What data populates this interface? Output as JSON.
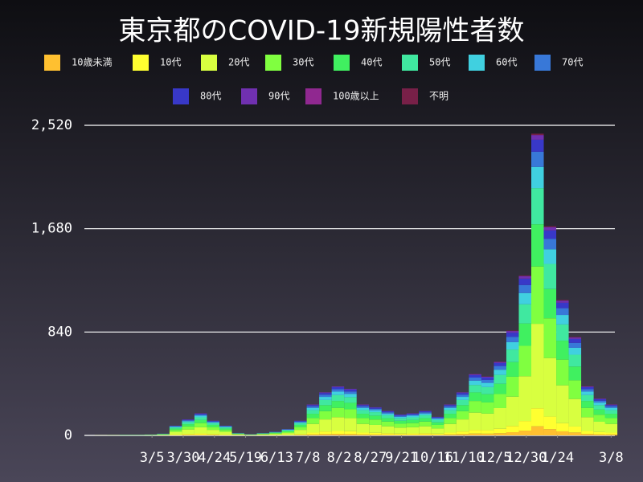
{
  "chart_data": {
    "type": "stacked-bar",
    "title": "東京都のCOVID-19新規陽性者数",
    "x": [
      0,
      10,
      20,
      30,
      40,
      50,
      60,
      70,
      80,
      90,
      100,
      110,
      120,
      130,
      140,
      150,
      160,
      170,
      180,
      190,
      200,
      210,
      220,
      230,
      240,
      250,
      260,
      270,
      280,
      290,
      300,
      310,
      320,
      330,
      340,
      350,
      360,
      370,
      380,
      390,
      400,
      409
    ],
    "xlim": [
      -10,
      412
    ],
    "xticks": [
      {
        "value": 41,
        "label": "3/5"
      },
      {
        "value": 66,
        "label": "3/30"
      },
      {
        "value": 91,
        "label": "4/24"
      },
      {
        "value": 116,
        "label": "5/19"
      },
      {
        "value": 141,
        "label": "6/13"
      },
      {
        "value": 166,
        "label": "7/8"
      },
      {
        "value": 191,
        "label": "8/2"
      },
      {
        "value": 216,
        "label": "8/27"
      },
      {
        "value": 241,
        "label": "9/21"
      },
      {
        "value": 266,
        "label": "10/16"
      },
      {
        "value": 291,
        "label": "11/10"
      },
      {
        "value": 316,
        "label": "12/5"
      },
      {
        "value": 341,
        "label": "12/30"
      },
      {
        "value": 366,
        "label": "1/24"
      },
      {
        "value": 409,
        "label": "3/8"
      }
    ],
    "ylim": [
      0,
      2520
    ],
    "yticks": [
      0,
      {
        "value": 840,
        "label": "840"
      },
      {
        "value": 1680,
        "label": "1,680"
      },
      {
        "value": 2520,
        "label": "2,520"
      }
    ],
    "grid": true,
    "series": [
      {
        "name": "10歳未満",
        "color": "#ffc030",
        "values": [
          0,
          0,
          0,
          0,
          0,
          0,
          2,
          4,
          5,
          4,
          2,
          1,
          0,
          1,
          1,
          2,
          4,
          8,
          11,
          12,
          11,
          8,
          7,
          6,
          5,
          5,
          6,
          5,
          8,
          11,
          15,
          14,
          18,
          26,
          39,
          74,
          51,
          33,
          24,
          12,
          9,
          8
        ]
      },
      {
        "name": "10代",
        "color": "#ffff30",
        "values": [
          0,
          0,
          0,
          0,
          0,
          1,
          5,
          8,
          11,
          7,
          5,
          1,
          1,
          1,
          2,
          3,
          7,
          15,
          21,
          24,
          23,
          15,
          14,
          12,
          10,
          11,
          12,
          9,
          15,
          21,
          30,
          29,
          36,
          51,
          78,
          147,
          102,
          66,
          48,
          24,
          18,
          15
        ]
      },
      {
        "name": "20代",
        "color": "#d8ff40",
        "values": [
          1,
          1,
          1,
          1,
          2,
          4,
          22,
          36,
          50,
          34,
          22,
          6,
          3,
          6,
          8,
          14,
          34,
          70,
          98,
          112,
          106,
          70,
          64,
          56,
          48,
          50,
          56,
          42,
          70,
          98,
          140,
          134,
          168,
          238,
          364,
          686,
          476,
          308,
          224,
          112,
          84,
          70
        ]
      },
      {
        "name": "30代",
        "color": "#80ff40",
        "values": [
          0,
          1,
          1,
          1,
          2,
          3,
          15,
          25,
          34,
          23,
          15,
          4,
          2,
          4,
          6,
          10,
          23,
          48,
          67,
          76,
          72,
          48,
          44,
          38,
          32,
          34,
          38,
          29,
          48,
          67,
          95,
          91,
          114,
          162,
          247,
          466,
          323,
          209,
          152,
          76,
          57,
          48
        ]
      },
      {
        "name": "40代",
        "color": "#40f060",
        "values": [
          0,
          0,
          1,
          1,
          1,
          2,
          11,
          18,
          25,
          17,
          11,
          3,
          1,
          3,
          4,
          7,
          17,
          35,
          49,
          56,
          53,
          35,
          32,
          28,
          24,
          25,
          28,
          21,
          35,
          49,
          70,
          67,
          84,
          119,
          182,
          343,
          238,
          154,
          112,
          56,
          42,
          35
        ]
      },
      {
        "name": "50代",
        "color": "#40e8a0",
        "values": [
          0,
          0,
          1,
          1,
          1,
          2,
          10,
          16,
          22,
          14,
          10,
          2,
          1,
          2,
          4,
          6,
          14,
          30,
          42,
          48,
          46,
          30,
          28,
          24,
          20,
          22,
          24,
          18,
          30,
          42,
          60,
          58,
          72,
          102,
          156,
          294,
          204,
          132,
          96,
          48,
          36,
          30
        ]
      },
      {
        "name": "60代",
        "color": "#40d0e0",
        "values": [
          0,
          0,
          0,
          0,
          1,
          1,
          6,
          9,
          13,
          8,
          6,
          1,
          1,
          1,
          2,
          4,
          8,
          18,
          25,
          28,
          27,
          18,
          16,
          14,
          12,
          13,
          14,
          11,
          18,
          25,
          35,
          34,
          42,
          60,
          91,
          172,
          119,
          77,
          56,
          28,
          21,
          18
        ]
      },
      {
        "name": "70代",
        "color": "#3878d8",
        "values": [
          0,
          0,
          0,
          0,
          0,
          1,
          4,
          7,
          9,
          6,
          4,
          1,
          1,
          1,
          2,
          3,
          6,
          13,
          18,
          20,
          19,
          13,
          12,
          10,
          9,
          9,
          10,
          8,
          13,
          18,
          25,
          24,
          30,
          43,
          65,
          123,
          85,
          55,
          40,
          20,
          15,
          13
        ]
      },
      {
        "name": "80代",
        "color": "#3838c8",
        "values": [
          0,
          0,
          0,
          0,
          0,
          0,
          3,
          5,
          7,
          5,
          3,
          1,
          0,
          1,
          1,
          2,
          5,
          10,
          14,
          16,
          15,
          10,
          9,
          8,
          7,
          7,
          8,
          6,
          10,
          14,
          20,
          19,
          24,
          34,
          52,
          98,
          68,
          44,
          32,
          16,
          12,
          10
        ]
      },
      {
        "name": "90代",
        "color": "#7030b0",
        "values": [
          0,
          0,
          0,
          0,
          0,
          0,
          1,
          2,
          3,
          2,
          1,
          0,
          0,
          0,
          0,
          1,
          2,
          4,
          5,
          6,
          6,
          4,
          3,
          3,
          3,
          3,
          3,
          2,
          4,
          5,
          8,
          7,
          9,
          13,
          20,
          37,
          26,
          17,
          12,
          6,
          5,
          4
        ]
      },
      {
        "name": "100歳以上",
        "color": "#902890",
        "values": [
          0,
          0,
          0,
          0,
          0,
          0,
          0,
          0,
          0,
          0,
          0,
          0,
          0,
          0,
          0,
          0,
          0,
          0,
          0,
          0,
          0,
          0,
          0,
          0,
          0,
          0,
          0,
          0,
          0,
          0,
          0,
          0,
          0,
          1,
          1,
          2,
          1,
          1,
          0,
          0,
          0,
          0
        ]
      },
      {
        "name": "不明",
        "color": "#782048",
        "values": [
          0,
          0,
          0,
          0,
          0,
          0,
          0,
          0,
          0,
          0,
          0,
          0,
          0,
          0,
          0,
          0,
          0,
          0,
          0,
          0,
          0,
          0,
          0,
          0,
          0,
          0,
          0,
          0,
          0,
          0,
          1,
          2,
          2,
          3,
          5,
          10,
          7,
          5,
          4,
          2,
          1,
          1
        ]
      }
    ]
  }
}
